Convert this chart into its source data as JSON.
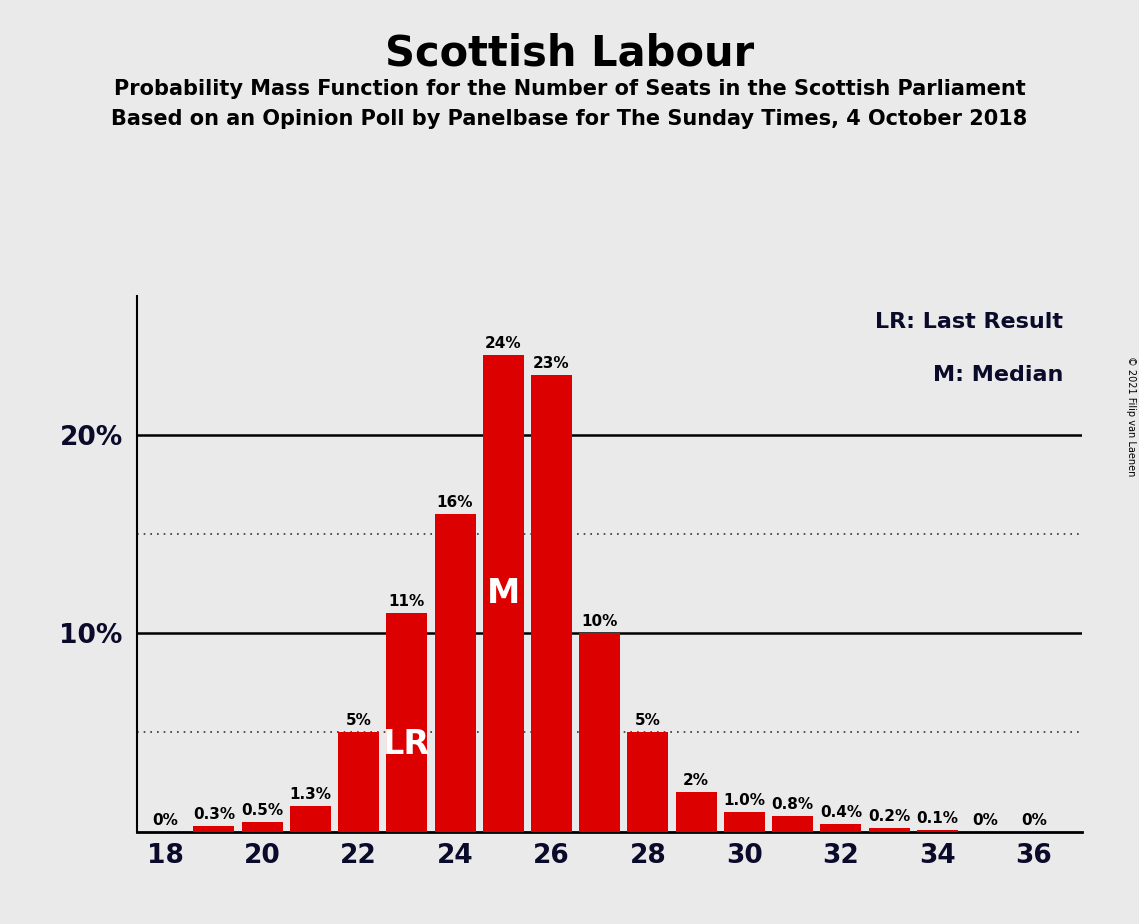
{
  "title": "Scottish Labour",
  "subtitle1": "Probability Mass Function for the Number of Seats in the Scottish Parliament",
  "subtitle2": "Based on an Opinion Poll by Panelbase for The Sunday Times, 4 October 2018",
  "copyright": "© 2021 Filip van Laenen",
  "legend_lr": "LR: Last Result",
  "legend_m": "M: Median",
  "seats": [
    18,
    19,
    20,
    21,
    22,
    23,
    24,
    25,
    26,
    27,
    28,
    29,
    30,
    31,
    32,
    33,
    34,
    35,
    36
  ],
  "values": [
    0.0,
    0.3,
    0.5,
    1.3,
    5.0,
    11.0,
    16.0,
    24.0,
    23.0,
    10.0,
    5.0,
    2.0,
    1.0,
    0.8,
    0.4,
    0.2,
    0.1,
    0.0,
    0.0
  ],
  "labels": [
    "0%",
    "0.3%",
    "0.5%",
    "1.3%",
    "5%",
    "11%",
    "16%",
    "24%",
    "23%",
    "10%",
    "5%",
    "2%",
    "1.0%",
    "0.8%",
    "0.4%",
    "0.2%",
    "0.1%",
    "0%",
    "0%"
  ],
  "bar_color": "#DD0000",
  "background_color": "#EAEAEA",
  "lr_seat": 23,
  "median_seat": 25,
  "dotted_lines": [
    5.0,
    15.0
  ],
  "solid_lines": [
    10.0,
    20.0
  ],
  "ylim": [
    0,
    27
  ],
  "xlim": [
    17.4,
    37.0
  ],
  "bar_width": 0.85,
  "xlabel_ticks": [
    18,
    20,
    22,
    24,
    26,
    28,
    30,
    32,
    34,
    36
  ],
  "ylabel_ticks": [
    10,
    20
  ],
  "ylabel_labels": [
    "10%",
    "20%"
  ],
  "label_fontsize": 11,
  "tick_fontsize": 19,
  "legend_fontsize": 16,
  "title_fontsize": 30,
  "subtitle_fontsize": 15
}
